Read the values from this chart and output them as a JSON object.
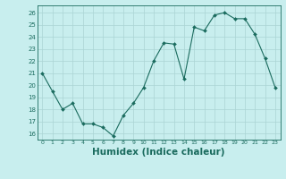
{
  "x": [
    0,
    1,
    2,
    3,
    4,
    5,
    6,
    7,
    8,
    9,
    10,
    11,
    12,
    13,
    14,
    15,
    16,
    17,
    18,
    19,
    20,
    21,
    22,
    23
  ],
  "y": [
    21.0,
    19.5,
    18.0,
    18.5,
    16.8,
    16.8,
    16.5,
    15.8,
    17.5,
    18.5,
    19.8,
    22.0,
    23.5,
    23.4,
    20.5,
    24.8,
    24.5,
    25.8,
    26.0,
    25.5,
    25.5,
    24.2,
    22.2,
    19.8
  ],
  "line_color": "#1a6b5e",
  "marker": "D",
  "marker_size": 2.0,
  "bg_color": "#c8eeee",
  "grid_color": "#aad4d4",
  "tick_color": "#1a6b5e",
  "xlabel": "Humidex (Indice chaleur)",
  "xlabel_fontsize": 7.5,
  "ylabel_ticks": [
    16,
    17,
    18,
    19,
    20,
    21,
    22,
    23,
    24,
    25,
    26
  ],
  "ylim": [
    15.5,
    26.6
  ],
  "xlim": [
    -0.5,
    23.5
  ]
}
